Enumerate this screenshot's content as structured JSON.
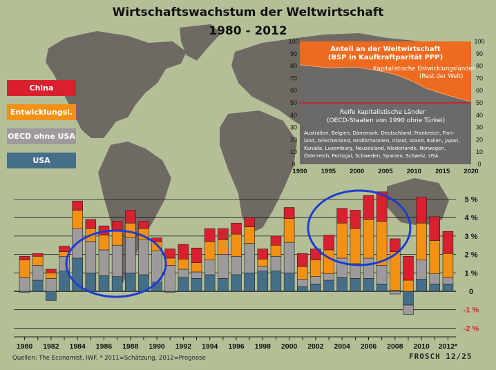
{
  "title": "Wirtschaftswachstum der Weltwirtschaft",
  "subtitle": "1980 - 2012",
  "legend": [
    {
      "label": "China",
      "color": "#d9202e"
    },
    {
      "label": "Entwicklungsl.",
      "color": "#f39115"
    },
    {
      "label": "OECD ohne USA",
      "color": "#9e9a9b"
    },
    {
      "label": "USA",
      "color": "#456f88"
    }
  ],
  "source": "Quellen: The Economist, IWF.  * 2011=Schätzung, 2012=Prognose",
  "signature": "FROSCH 12/25",
  "inset": {
    "title_line1": "Anteil an der Weltwirtschaft",
    "title_line2": "(BSP in Kaufkraftparität PPP)",
    "upper_label_line1": "Kapitalistische Entwicklungsländer",
    "upper_label_line2": "(Rest der Welt)",
    "lower_label_line1": "Reife kapitalistische Länder",
    "lower_label_line2": "(OECD-Staaten von 1990 ohne Türkei)",
    "countries": [
      "Australien, Belgien, Dänemark, Deutschland, Frankreich, Finn-",
      "land, Griechenland, Großbritannien, Irland, Island, Italien, Japan,",
      "Kanada, Luxemburg, Neuseeland, Niederlande, Norwegen,",
      "Österreich, Portugal, Schweden, Spanien, Schweiz, USA"
    ]
  },
  "chart_data": [
    {
      "type": "bar",
      "stacked": true,
      "title": "Wirtschaftswachstum der Weltwirtschaft",
      "subtitle": "1980 - 2012",
      "x": [
        1980,
        1981,
        1982,
        1983,
        1984,
        1985,
        1986,
        1987,
        1988,
        1989,
        1990,
        1991,
        1992,
        1993,
        1994,
        1995,
        1996,
        1997,
        1998,
        1999,
        2000,
        2001,
        2002,
        2003,
        2004,
        2005,
        2006,
        2007,
        2008,
        2009,
        2010,
        2011,
        2012
      ],
      "x_tick_labels": [
        "1980",
        "1982",
        "1984",
        "1986",
        "1988",
        "1990",
        "1992",
        "1994",
        "1996",
        "1998",
        "2000",
        "2002",
        "2004",
        "2006",
        "2008",
        "2010",
        "2012*"
      ],
      "y_ticks": [
        -2,
        -1,
        0,
        1,
        2,
        3,
        4,
        5
      ],
      "y_tick_labels": [
        "-2 %",
        "-1 %",
        "0",
        "1 %",
        "2 %",
        "3 %",
        "4 %",
        "5 %"
      ],
      "ylim": [
        -2.2,
        5.4
      ],
      "series": [
        {
          "name": "USA",
          "color": "#456f88",
          "values": [
            -0.05,
            0.6,
            -0.5,
            1.1,
            1.8,
            1.0,
            0.85,
            0.8,
            1.0,
            0.9,
            0.5,
            -0.05,
            0.75,
            0.7,
            0.9,
            0.7,
            0.9,
            1.0,
            1.1,
            1.1,
            1.0,
            0.25,
            0.4,
            0.6,
            0.75,
            0.7,
            0.7,
            0.4,
            0.05,
            -0.75,
            0.65,
            0.4,
            0.4
          ]
        },
        {
          "name": "OECD ohne USA",
          "color": "#9e9a9b",
          "values": [
            0.75,
            0.8,
            0.7,
            0.8,
            1.6,
            1.7,
            1.4,
            1.7,
            1.9,
            1.9,
            1.7,
            1.4,
            0.45,
            0.35,
            0.8,
            1.3,
            1.0,
            1.6,
            0.25,
            0.8,
            1.65,
            0.4,
            0.4,
            0.35,
            1.05,
            0.8,
            1.1,
            1.0,
            -0.15,
            -0.5,
            1.05,
            0.55,
            0.35
          ]
        },
        {
          "name": "Entwicklungsl.",
          "color": "#f39115",
          "values": [
            0.95,
            0.5,
            0.3,
            0.25,
            1.0,
            0.7,
            0.8,
            0.8,
            0.8,
            0.6,
            0.5,
            0.4,
            0.55,
            0.5,
            1.0,
            0.8,
            1.2,
            0.9,
            0.4,
            0.6,
            1.3,
            0.7,
            0.9,
            1.3,
            1.9,
            1.9,
            2.1,
            2.4,
            2.1,
            0.6,
            2.0,
            1.8,
            1.3
          ]
        },
        {
          "name": "China",
          "color": "#d9202e",
          "values": [
            0.2,
            0.15,
            0.2,
            0.3,
            0.5,
            0.5,
            0.5,
            0.5,
            0.7,
            0.4,
            0.2,
            0.5,
            0.8,
            0.8,
            0.7,
            0.6,
            0.6,
            0.5,
            0.55,
            0.5,
            0.6,
            0.7,
            0.6,
            0.8,
            0.8,
            1.0,
            1.3,
            1.6,
            0.7,
            1.3,
            1.4,
            1.3,
            1.2
          ]
        }
      ]
    },
    {
      "type": "area",
      "title": "Anteil an der Weltwirtschaft",
      "subtitle": "(BSP in Kaufkraftparität PPP)",
      "x": [
        1990,
        1992,
        1994,
        1996,
        1998,
        2000,
        2002,
        2004,
        2006,
        2008,
        2010,
        2012,
        2014,
        2016,
        2018,
        2020
      ],
      "x_tick_labels": [
        "1990",
        "1995",
        "2000",
        "2005",
        "2010",
        "2015",
        "2020"
      ],
      "y_tick_labels": [
        "0",
        "10",
        "20",
        "30",
        "40",
        "50",
        "60",
        "70",
        "80",
        "90",
        "100"
      ],
      "ylim": [
        0,
        100
      ],
      "reference_line": 50,
      "series": [
        {
          "name": "Reife kapitalistische Länder",
          "values": [
            81,
            80,
            79,
            78.5,
            79,
            79,
            77.5,
            76,
            74,
            71,
            67,
            62,
            59,
            56,
            53.5,
            51
          ]
        },
        {
          "name": "Kapitalistische Entwicklungsländer",
          "values": [
            19,
            20,
            21,
            21.5,
            21,
            21,
            22.5,
            24,
            26,
            29,
            33,
            38,
            41,
            44,
            46.5,
            49
          ]
        }
      ]
    }
  ]
}
